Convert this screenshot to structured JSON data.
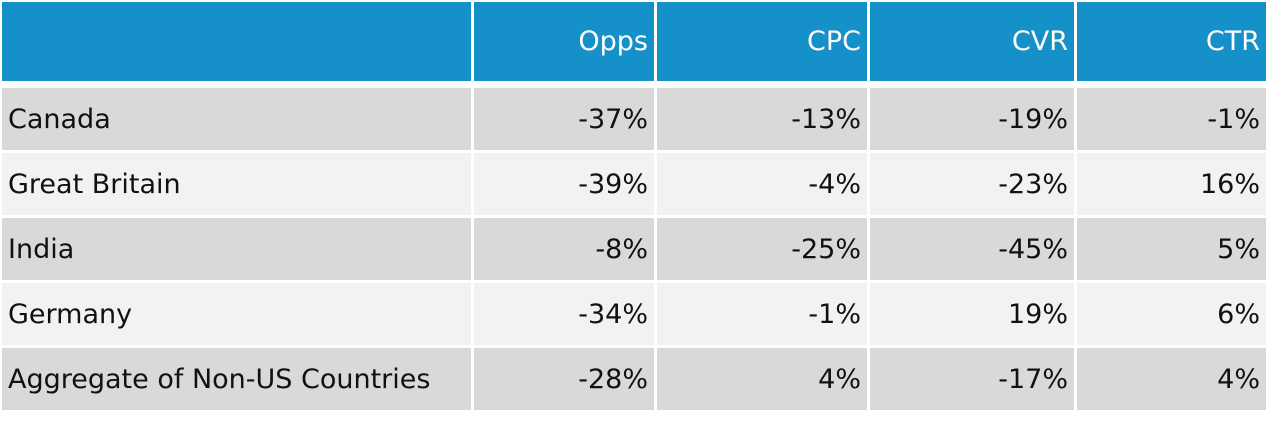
{
  "header": {
    "label_col": "",
    "columns": [
      "Opps",
      "CPC",
      "CVR",
      "CTR"
    ]
  },
  "rows": [
    {
      "country": "Canada",
      "values": [
        "-37%",
        "-13%",
        "-19%",
        "-1%"
      ]
    },
    {
      "country": "Great Britain",
      "values": [
        "-39%",
        "-4%",
        "-23%",
        "16%"
      ]
    },
    {
      "country": "India",
      "values": [
        "-8%",
        "-25%",
        "-45%",
        "5%"
      ]
    },
    {
      "country": "Germany",
      "values": [
        "-34%",
        "-1%",
        "19%",
        "6%"
      ]
    },
    {
      "country": "Aggregate of Non-US Countries",
      "values": [
        "-28%",
        "4%",
        "-17%",
        "4%"
      ]
    }
  ],
  "colors": {
    "header_bg": "#1690c8",
    "header_text": "#ffffff",
    "row_odd_bg": "#d9d9d9",
    "row_even_bg": "#f2f2f2"
  }
}
